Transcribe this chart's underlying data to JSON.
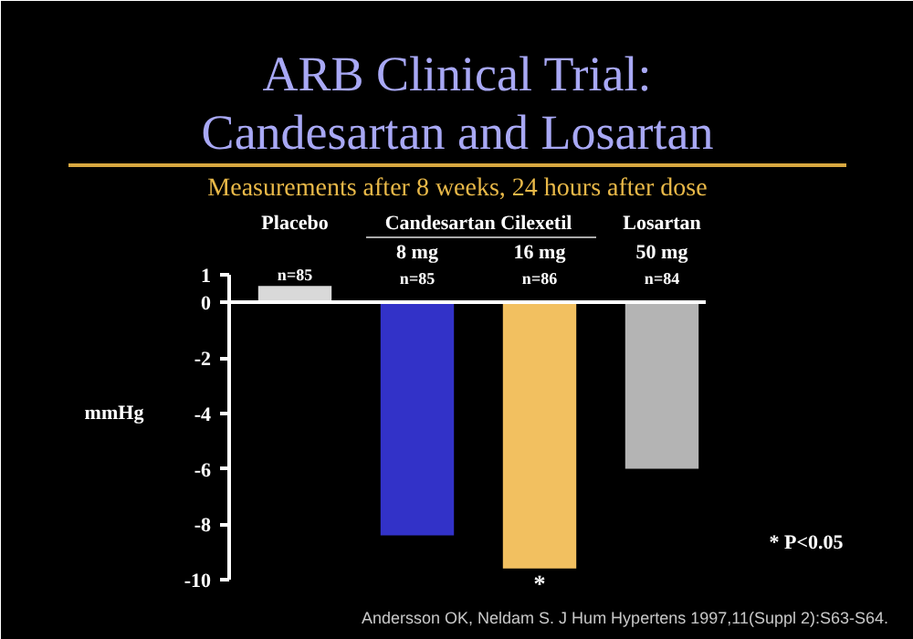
{
  "chart_data": {
    "type": "bar",
    "title": "ARB Clinical Trial:\nCandesartan and Losartan",
    "subtitle": "Measurements after 8 weeks, 24 hours after dose",
    "ylabel": "mmHg",
    "categories": [
      "Placebo",
      "8 mg",
      "16 mg",
      "50 mg"
    ],
    "values": [
      0.6,
      -8.4,
      -9.6,
      -6.0
    ],
    "colors": [
      "#d9d9d9",
      "#3232c8",
      "#f2c060",
      "#b4b4b4"
    ],
    "ylim": [
      -10,
      1
    ],
    "yticks": [
      1,
      0,
      -2,
      -4,
      -6,
      -8,
      -10
    ],
    "grid": false,
    "annotations": [
      "Candesartan Cilexetil",
      "Losartan",
      "n=85",
      "n=85",
      "n=86",
      "n=84",
      "*",
      "* P<0.05",
      "Andersson OK, Neldam S.  J Hum Hypertens 1997,11(Suppl 2):S63-S64."
    ]
  }
}
